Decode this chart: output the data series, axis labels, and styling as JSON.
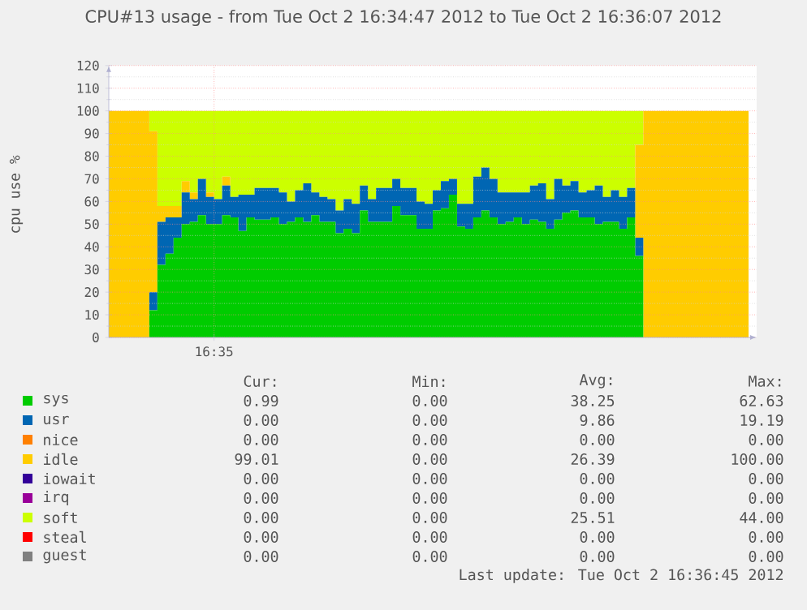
{
  "chart_data": {
    "type": "area",
    "stacked": true,
    "title": "CPU#13 usage - from Tue Oct  2 16:34:47 2012 to Tue Oct  2 16:36:07 2012",
    "ylabel": "cpu use %",
    "categories": [
      null,
      null,
      null,
      null,
      null,
      null,
      null,
      null,
      null,
      null,
      null,
      null,
      null,
      "16:35",
      null,
      null,
      null,
      null,
      null,
      null,
      null,
      null,
      null,
      null,
      null,
      null,
      null,
      null,
      null,
      null,
      null,
      null,
      null,
      null,
      null,
      null,
      null,
      null,
      null,
      null,
      null,
      null,
      null,
      null,
      null,
      null,
      null,
      null,
      null,
      null,
      null,
      null,
      null,
      null,
      null,
      null,
      null,
      null,
      null,
      null,
      null,
      null,
      null,
      null,
      null,
      null,
      null,
      null,
      null,
      null,
      null,
      null,
      null,
      null,
      null,
      null,
      null,
      null,
      null,
      null
    ],
    "series": [
      {
        "name": "sys",
        "color": "#00cc00",
        "values": [
          0,
          0,
          0,
          0,
          0,
          12,
          32,
          37,
          44,
          50,
          51,
          54,
          50,
          50,
          54,
          53,
          47,
          53,
          52,
          52,
          53,
          50,
          51,
          53,
          51,
          54,
          51,
          51,
          46,
          48,
          46,
          56,
          51,
          51,
          51,
          58,
          54,
          54,
          48,
          48,
          56,
          57,
          63,
          49,
          48,
          53,
          56,
          53,
          50,
          51,
          53,
          50,
          52,
          51,
          48,
          52,
          55,
          56,
          53,
          53,
          50,
          51,
          51,
          48,
          53,
          36,
          0,
          0,
          0,
          0,
          0,
          0,
          0,
          0,
          0,
          0,
          0,
          0,
          0,
          1
        ]
      },
      {
        "name": "usr",
        "color": "#0066b3",
        "values": [
          0,
          0,
          0,
          0,
          0,
          8,
          19,
          16,
          9,
          14,
          10,
          16,
          12,
          11,
          13,
          9,
          16,
          10,
          14,
          14,
          13,
          14,
          9,
          12,
          17,
          10,
          11,
          10,
          10,
          13,
          13,
          11,
          10,
          15,
          15,
          12,
          12,
          12,
          12,
          11,
          9,
          12,
          7,
          10,
          11,
          18,
          19,
          17,
          14,
          13,
          11,
          14,
          15,
          17,
          13,
          18,
          12,
          13,
          11,
          12,
          17,
          11,
          14,
          14,
          13,
          8,
          0,
          0,
          0,
          0,
          0,
          0,
          0,
          0,
          0,
          0,
          0,
          0,
          0,
          0
        ]
      },
      {
        "name": "nice",
        "color": "#ff8000",
        "values": [
          null,
          null,
          null,
          null,
          null,
          null,
          null,
          null,
          null,
          null,
          null,
          null,
          null,
          null,
          null,
          null,
          null,
          null,
          null,
          null,
          null,
          null,
          null,
          null,
          null,
          null,
          null,
          null,
          null,
          null,
          null,
          null,
          null,
          null,
          null,
          null,
          null,
          null,
          null,
          null,
          null,
          null,
          null,
          null,
          null,
          null,
          null,
          null,
          null,
          null,
          null,
          null,
          null,
          null,
          null,
          null,
          null,
          null,
          null,
          null,
          null,
          null,
          null,
          null,
          null,
          null,
          null,
          null,
          null,
          null,
          null,
          null,
          null,
          null,
          null,
          null,
          null,
          null,
          null,
          null
        ]
      },
      {
        "name": "idle",
        "color": "#ffcc00",
        "values": [
          100,
          100,
          100,
          100,
          100,
          71,
          7,
          5,
          5,
          5,
          3,
          0,
          2,
          0,
          4,
          0,
          0,
          0,
          0,
          0,
          0,
          0,
          0,
          0,
          0,
          0,
          0,
          0,
          0,
          0,
          0,
          0,
          0,
          0,
          0,
          0,
          0,
          0,
          0,
          0,
          0,
          0,
          0,
          0,
          0,
          0,
          0,
          0,
          0,
          0,
          0,
          0,
          0,
          0,
          0,
          0,
          0,
          0,
          0,
          0,
          0,
          0,
          0,
          0,
          0,
          41,
          100,
          100,
          100,
          100,
          100,
          100,
          100,
          100,
          100,
          100,
          100,
          100,
          100,
          99
        ]
      },
      {
        "name": "iowait",
        "color": "#330099",
        "values": [
          null,
          null,
          null,
          null,
          null,
          null,
          null,
          null,
          null,
          null,
          null,
          null,
          null,
          null,
          null,
          null,
          null,
          null,
          null,
          null,
          null,
          null,
          null,
          null,
          null,
          null,
          null,
          null,
          null,
          null,
          null,
          null,
          null,
          null,
          null,
          null,
          null,
          null,
          null,
          null,
          null,
          null,
          null,
          null,
          null,
          null,
          null,
          null,
          null,
          null,
          null,
          null,
          null,
          null,
          null,
          null,
          null,
          null,
          null,
          null,
          null,
          null,
          null,
          null,
          null,
          null,
          null,
          null,
          null,
          null,
          null,
          null,
          null,
          null,
          null,
          null,
          null,
          null,
          null,
          null
        ]
      },
      {
        "name": "irq",
        "color": "#990099",
        "values": [
          null,
          null,
          null,
          null,
          null,
          null,
          null,
          null,
          null,
          null,
          null,
          null,
          null,
          null,
          null,
          null,
          null,
          null,
          null,
          null,
          null,
          null,
          null,
          null,
          null,
          null,
          null,
          null,
          null,
          null,
          null,
          null,
          null,
          null,
          null,
          null,
          null,
          null,
          null,
          null,
          null,
          null,
          null,
          null,
          null,
          null,
          null,
          null,
          null,
          null,
          null,
          null,
          null,
          null,
          null,
          null,
          null,
          null,
          null,
          null,
          null,
          null,
          null,
          null,
          null,
          null,
          null,
          null,
          null,
          null,
          null,
          null,
          null,
          null,
          null,
          null,
          null,
          null,
          null,
          null
        ]
      },
      {
        "name": "soft",
        "color": "#ccff00",
        "values": [
          0,
          0,
          0,
          0,
          0,
          9,
          42,
          42,
          42,
          31,
          36,
          30,
          36,
          39,
          29,
          38,
          37,
          37,
          34,
          34,
          34,
          36,
          40,
          35,
          32,
          36,
          38,
          39,
          44,
          39,
          41,
          33,
          39,
          34,
          34,
          30,
          34,
          34,
          40,
          41,
          35,
          31,
          30,
          41,
          41,
          29,
          25,
          30,
          36,
          36,
          36,
          36,
          33,
          32,
          39,
          30,
          33,
          31,
          36,
          35,
          33,
          38,
          35,
          38,
          34,
          15,
          0,
          0,
          0,
          0,
          0,
          0,
          0,
          0,
          0,
          0,
          0,
          0,
          0,
          0
        ]
      },
      {
        "name": "steal",
        "color": "#ff0000",
        "values": [
          null,
          null,
          null,
          null,
          null,
          null,
          null,
          null,
          null,
          null,
          null,
          null,
          null,
          null,
          null,
          null,
          null,
          null,
          null,
          null,
          null,
          null,
          null,
          null,
          null,
          null,
          null,
          null,
          null,
          null,
          null,
          null,
          null,
          null,
          null,
          null,
          null,
          null,
          null,
          null,
          null,
          null,
          null,
          null,
          null,
          null,
          null,
          null,
          null,
          null,
          null,
          null,
          null,
          null,
          null,
          null,
          null,
          null,
          null,
          null,
          null,
          null,
          null,
          null,
          null,
          null,
          null,
          null,
          null,
          null,
          null,
          null,
          null,
          null,
          null,
          null,
          null,
          null,
          null,
          null
        ]
      },
      {
        "name": "guest",
        "color": "#808080",
        "values": [
          null,
          null,
          null,
          null,
          null,
          null,
          null,
          null,
          null,
          null,
          null,
          null,
          null,
          null,
          null,
          null,
          null,
          null,
          null,
          null,
          null,
          null,
          null,
          null,
          null,
          null,
          null,
          null,
          null,
          null,
          null,
          null,
          null,
          null,
          null,
          null,
          null,
          null,
          null,
          null,
          null,
          null,
          null,
          null,
          null,
          null,
          null,
          null,
          null,
          null,
          null,
          null,
          null,
          null,
          null,
          null,
          null,
          null,
          null,
          null,
          null,
          null,
          null,
          null,
          null,
          null,
          null,
          null,
          null,
          null,
          null,
          null,
          null,
          null,
          null,
          null,
          null,
          null,
          null,
          null
        ]
      }
    ],
    "ylim": [
      0,
      120
    ],
    "yticks": [
      0,
      10,
      20,
      30,
      40,
      50,
      60,
      70,
      80,
      90,
      100,
      110,
      120
    ],
    "grid": true,
    "legend": "bottom",
    "annotations": [
      "Cur:",
      "Min:",
      "Avg:",
      "Max:",
      "0.99",
      "0.00",
      "38.25",
      "62.63",
      "0.00",
      "0.00",
      "9.86",
      "19.19",
      "0.00",
      "0.00",
      "0.00",
      "0.00",
      "99.01",
      "0.00",
      "26.39",
      "100.00",
      "0.00",
      "0.00",
      "0.00",
      "0.00",
      "0.00",
      "0.00",
      "0.00",
      "0.00",
      "0.00",
      "0.00",
      "25.51",
      "44.00",
      "0.00",
      "0.00",
      "0.00",
      "0.00",
      "0.00",
      "0.00",
      "0.00",
      "0.00",
      "Last update: Tue Oct  2 16:36:45 2012"
    ]
  }
}
